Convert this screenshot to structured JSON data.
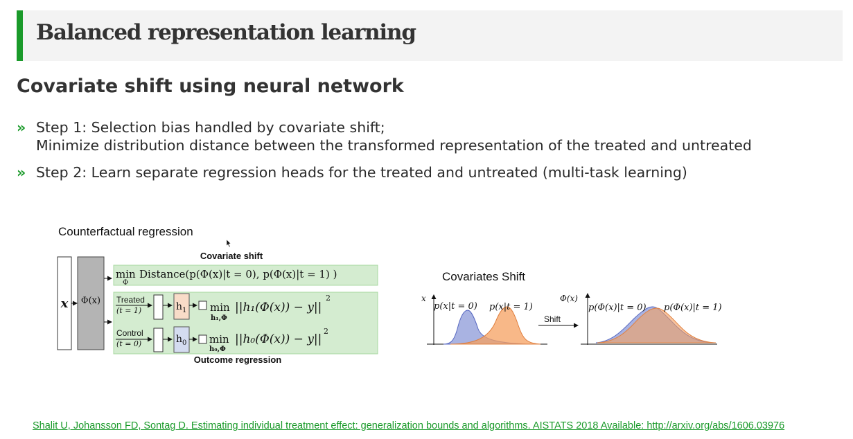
{
  "slide": {
    "title": "Balanced representation learning",
    "subtitle": "Covariate shift using neural network",
    "bullets": [
      {
        "mark": "»",
        "lines": [
          "Step 1: Selection bias handled by covariate shift;",
          "Minimize distribution distance between the transformed representation of the treated and untreated"
        ]
      },
      {
        "mark": "»",
        "lines": [
          "Step 2: Learn separate regression heads for the treated and untreated (multi-task learning)"
        ]
      }
    ],
    "reference": "Shalit U, Johansson FD, Sontag D. Estimating individual treatment effect: generalization bounds and algorithms. AISTATS 2018 Available: http://arxiv.org/abs/1606.03976"
  },
  "left_diagram": {
    "heading": "Counterfactual regression",
    "covariate_shift_label": "Covariate shift",
    "outcome_regression_label": "Outcome regression",
    "input_label": "x",
    "representation_label": "Φ(x)",
    "min_label": "min",
    "min_sub_phi": "Φ",
    "distance_expr": "Distance(p(Φ(x)|t = 0), p(Φ(x)|t = 1) )",
    "treated_label": "Treated",
    "treated_cond": "(t = 1)",
    "control_label": "Control",
    "control_cond": "(t = 0)",
    "h1_label": "h",
    "h1_sub": "1",
    "h0_label": "h",
    "h0_sub": "0",
    "h1_min_sub": "h₁,Φ",
    "h0_min_sub": "h₀,Φ",
    "h1_loss": "||h₁(Φ(x)) − y||",
    "h0_loss": "||h₀(Φ(x)) − y||",
    "square_exp": "2",
    "colors": {
      "green_box": "#d4ecd0",
      "green_border": "#a8d8a0",
      "h1_fill": "#f8dcc8",
      "h0_fill": "#d4dcf0",
      "phi_fill": "#b4b4b4"
    }
  },
  "right_diagram": {
    "heading": "Covariates Shift",
    "left_axis_label": "x",
    "left_curve0_label": "p(x|t = 0)",
    "left_curve1_label": "p(x|t = 1)",
    "arrow_label": "Shift",
    "right_axis_label": "Φ(x)",
    "right_curve0_label": "p(Φ(x)|t = 0)",
    "right_curve1_label": "p(Φ(x)|t = 1)",
    "colors": {
      "t0": "#8c9ad8",
      "t1": "#f5a060",
      "t0_line": "#5566c0",
      "t1_line": "#e08040"
    }
  }
}
